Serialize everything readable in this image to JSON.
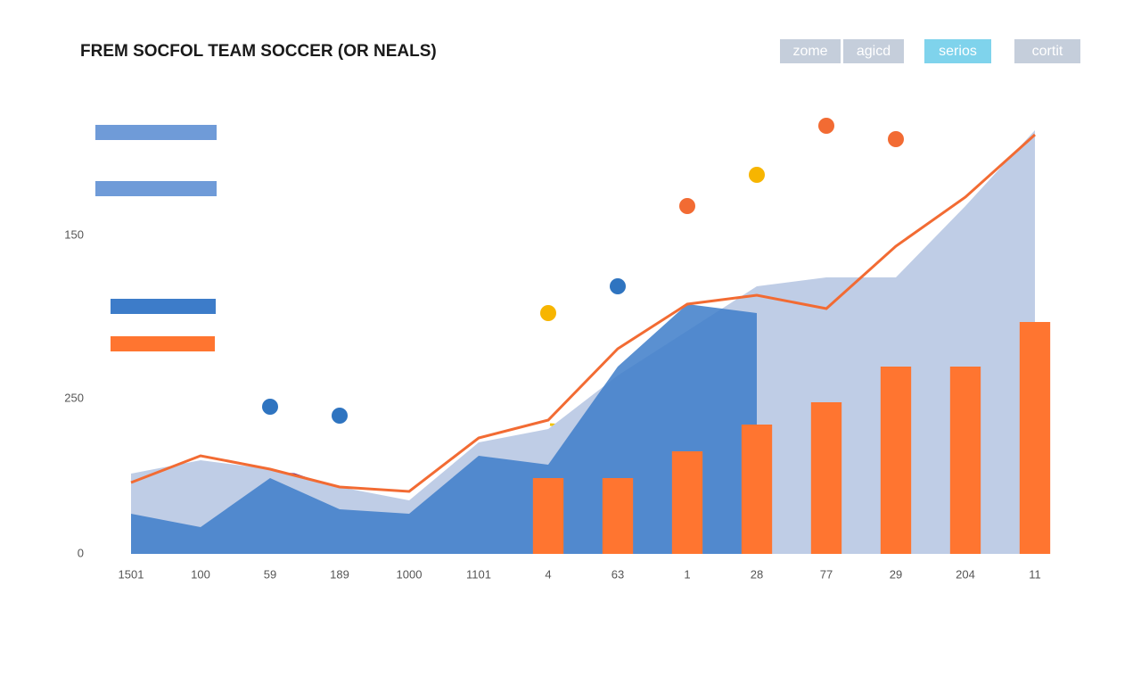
{
  "chart_data": {
    "type": "combo",
    "title": "FREM SOCFOL TEAM SOCCER (OR NEALS)",
    "buttons": [
      "zome",
      "agicd",
      "serios",
      "cortit"
    ],
    "y_axis_labels": [
      "150",
      "250",
      "0"
    ],
    "categories": [
      "1501",
      "100",
      "59",
      "189",
      "1000",
      "1101",
      "4",
      "63",
      "1",
      "28",
      "77",
      "29",
      "204",
      "11"
    ],
    "ylim": [
      0,
      100
    ],
    "series": [
      {
        "type": "area",
        "color": "#bfcde6",
        "values": [
          18,
          21,
          19,
          15,
          12,
          25,
          28,
          40,
          50,
          60,
          62,
          62,
          78,
          95
        ]
      },
      {
        "type": "area",
        "color": "#3d7cc9",
        "values": [
          9,
          6,
          17,
          10,
          9,
          22,
          20,
          42,
          56,
          54,
          null,
          null,
          null,
          null
        ]
      },
      {
        "type": "bar",
        "color": "#ff7530",
        "values": [
          null,
          null,
          null,
          null,
          null,
          null,
          17,
          17,
          23,
          29,
          34,
          42,
          42,
          52
        ]
      },
      {
        "type": "line",
        "color": "#f26b33",
        "values": [
          16,
          22,
          19,
          15,
          14,
          26,
          30,
          46,
          56,
          58,
          55,
          69,
          80,
          94
        ]
      },
      {
        "type": "scatter",
        "color": "#2f74c0",
        "values": [
          null,
          null,
          33,
          31,
          null,
          null,
          null,
          60,
          null,
          null,
          null,
          null,
          null,
          null
        ]
      },
      {
        "type": "scatter",
        "color": "#f7b500",
        "values": [
          null,
          null,
          null,
          null,
          null,
          null,
          54,
          null,
          null,
          85,
          null,
          null,
          null,
          null
        ]
      },
      {
        "type": "scatter",
        "color": "#f26b33",
        "values": [
          null,
          null,
          null,
          null,
          null,
          null,
          null,
          null,
          78,
          null,
          96,
          93,
          null,
          null
        ]
      }
    ]
  }
}
